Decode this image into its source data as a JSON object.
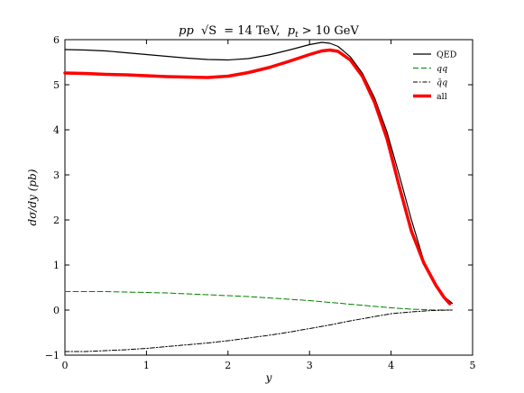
{
  "chart_data": {
    "type": "line",
    "title": "pp √S = 14 TeV, p_t > 10 GeV",
    "title_parts": {
      "process": "pp",
      "sqrt_s": "√S",
      "energy": "= 14 TeV,",
      "pt_symbol": "p",
      "pt_sub": "t",
      "pt_cut": "> 10 GeV"
    },
    "xlabel": "y",
    "ylabel": "dσ/dy (pb)",
    "xlim": [
      0,
      5
    ],
    "ylim": [
      -1,
      6
    ],
    "x_ticks": [
      "0",
      "1",
      "2",
      "3",
      "4",
      "5"
    ],
    "y_ticks": [
      "−1",
      "0",
      "1",
      "2",
      "3",
      "4",
      "5",
      "6"
    ],
    "grid": false,
    "legend_position": "top-right",
    "series": [
      {
        "name": "QED",
        "color": "#000000",
        "style": "solid",
        "width": 1.2,
        "x": [
          0,
          0.25,
          0.5,
          0.75,
          1.0,
          1.25,
          1.5,
          1.75,
          2.0,
          2.25,
          2.5,
          2.75,
          3.0,
          3.15,
          3.25,
          3.35,
          3.5,
          3.65,
          3.8,
          3.95,
          4.1,
          4.25,
          4.4,
          4.55,
          4.65,
          4.75
        ],
        "y": [
          5.78,
          5.77,
          5.75,
          5.71,
          5.67,
          5.63,
          5.59,
          5.56,
          5.55,
          5.58,
          5.66,
          5.77,
          5.89,
          5.94,
          5.92,
          5.85,
          5.62,
          5.25,
          4.7,
          3.95,
          3.0,
          2.0,
          1.1,
          0.55,
          0.3,
          0.15
        ]
      },
      {
        "name": "qq",
        "color": "#008000",
        "style": "dashed",
        "width": 1.0,
        "x": [
          0,
          0.25,
          0.5,
          0.75,
          1.0,
          1.25,
          1.5,
          1.75,
          2.0,
          2.25,
          2.5,
          2.75,
          3.0,
          3.25,
          3.5,
          3.75,
          4.0,
          4.25,
          4.5,
          4.75
        ],
        "y": [
          0.41,
          0.41,
          0.41,
          0.4,
          0.39,
          0.38,
          0.36,
          0.34,
          0.32,
          0.3,
          0.27,
          0.24,
          0.21,
          0.17,
          0.13,
          0.09,
          0.05,
          0.02,
          0.005,
          0.0
        ]
      },
      {
        "name": "q̄q",
        "color": "#000000",
        "style": "dashdot",
        "width": 1.0,
        "x": [
          0,
          0.25,
          0.5,
          0.75,
          1.0,
          1.25,
          1.5,
          1.75,
          2.0,
          2.25,
          2.5,
          2.75,
          3.0,
          3.25,
          3.5,
          3.75,
          4.0,
          4.25,
          4.5,
          4.75
        ],
        "y": [
          -0.92,
          -0.92,
          -0.9,
          -0.88,
          -0.85,
          -0.81,
          -0.77,
          -0.73,
          -0.68,
          -0.62,
          -0.56,
          -0.49,
          -0.41,
          -0.33,
          -0.24,
          -0.16,
          -0.08,
          -0.04,
          -0.01,
          0.0
        ]
      },
      {
        "name": "all",
        "color": "#ff0000",
        "style": "solid",
        "width": 3.5,
        "x": [
          0,
          0.25,
          0.5,
          0.75,
          1.0,
          1.25,
          1.5,
          1.75,
          2.0,
          2.25,
          2.5,
          2.75,
          3.0,
          3.15,
          3.25,
          3.35,
          3.5,
          3.65,
          3.8,
          3.95,
          4.1,
          4.25,
          4.4,
          4.55,
          4.65,
          4.72
        ],
        "y": [
          5.26,
          5.25,
          5.23,
          5.22,
          5.2,
          5.18,
          5.17,
          5.16,
          5.19,
          5.27,
          5.38,
          5.52,
          5.67,
          5.75,
          5.77,
          5.74,
          5.55,
          5.18,
          4.6,
          3.8,
          2.75,
          1.75,
          1.05,
          0.55,
          0.28,
          0.14
        ]
      }
    ]
  }
}
